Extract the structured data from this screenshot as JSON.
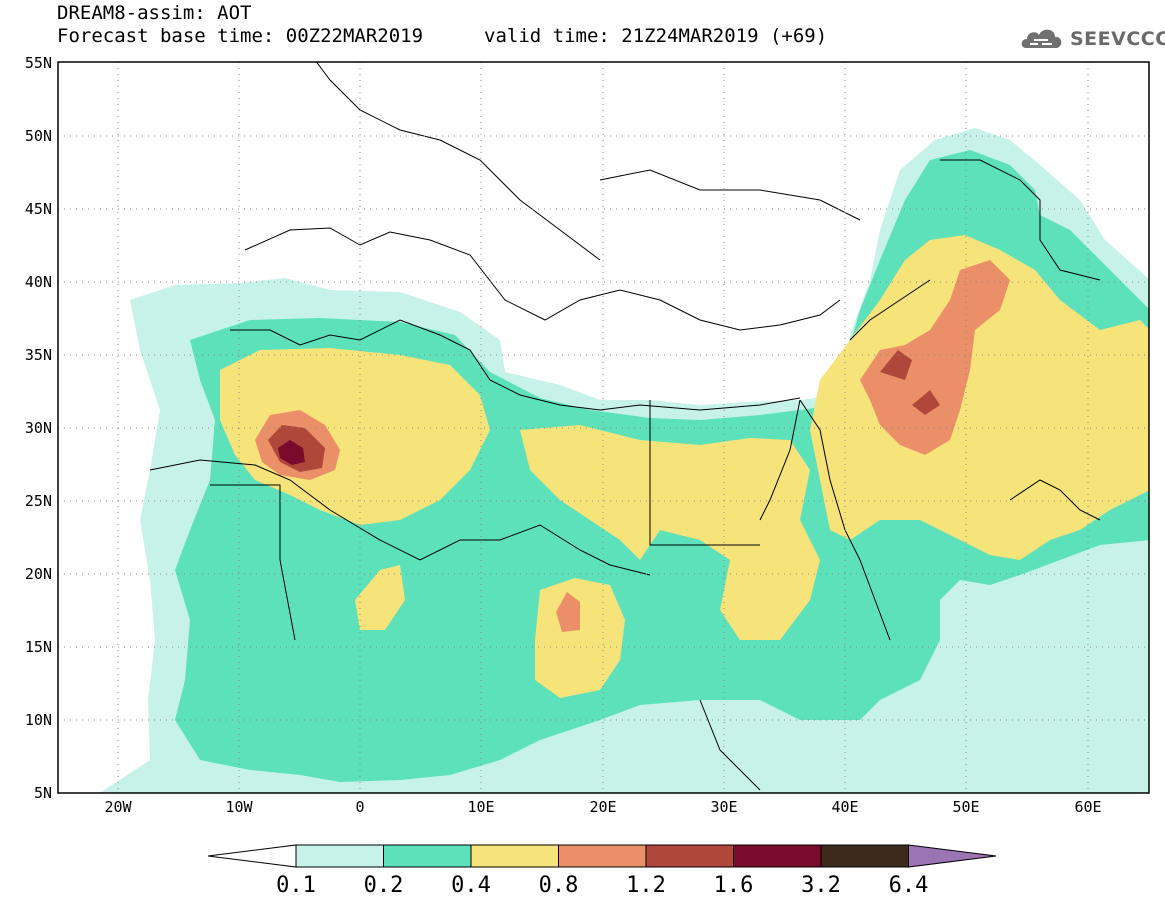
{
  "header": {
    "line1": "DREAM8-assim: AOT",
    "line2": "Forecast base time: 00Z22MAR2019",
    "valid_time": "valid time: 21Z24MAR2019 (+69)"
  },
  "logo": {
    "text": "SEEVCCC",
    "icon": "cloud-icon"
  },
  "map": {
    "lon_range": [
      -25,
      65
    ],
    "lat_range": [
      5,
      55
    ],
    "lat_labels": [
      "5N",
      "10N",
      "15N",
      "20N",
      "25N",
      "30N",
      "35N",
      "40N",
      "45N",
      "50N",
      "55N"
    ],
    "lon_labels": [
      "20W",
      "10W",
      "0",
      "10E",
      "20E",
      "30E",
      "40E",
      "50E",
      "60E"
    ],
    "grid": "dotted"
  },
  "colorbar": {
    "labels": [
      "0.1",
      "0.2",
      "0.4",
      "0.8",
      "1.2",
      "1.6",
      "3.2",
      "6.4"
    ],
    "colors": [
      "#ffffff",
      "#c6f2e9",
      "#5de1bb",
      "#f6e37a",
      "#ea8f67",
      "#b0473b",
      "#7a0b2c",
      "#3d2a1a",
      "#9b74b4"
    ]
  }
}
